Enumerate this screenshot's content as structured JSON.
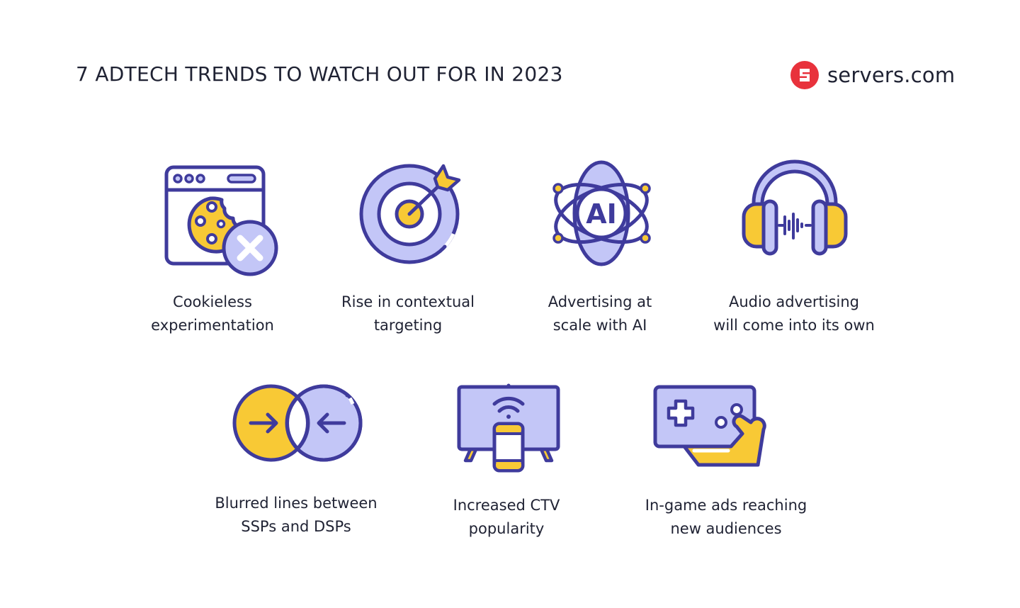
{
  "header": {
    "title": "7 ADTECH TRENDS TO WATCH OUT FOR IN 2023",
    "brand": "servers.com",
    "brand_color": "#e8323c"
  },
  "colors": {
    "outline": "#3f3b9c",
    "lavender": "#c3c6f7",
    "yellow": "#f8c935",
    "white": "#ffffff"
  },
  "trends": [
    {
      "icon": "browser-cookie-blocked-icon",
      "line1": "Cookieless",
      "line2": "experimentation"
    },
    {
      "icon": "target-arrow-icon",
      "line1": "Rise in contextual",
      "line2": "targeting"
    },
    {
      "icon": "ai-atom-icon",
      "icon_text": "AI",
      "line1": "Advertising at",
      "line2": "scale with AI"
    },
    {
      "icon": "headphones-audio-icon",
      "line1": "Audio advertising",
      "line2": "will come into its own"
    },
    {
      "icon": "overlapping-circles-arrows-icon",
      "line1": "Blurred lines between",
      "line2": "SSPs and DSPs"
    },
    {
      "icon": "tv-phone-wifi-icon",
      "line1": "Increased CTV",
      "line2": "popularity"
    },
    {
      "icon": "gamepad-hand-icon",
      "line1": "In-game ads reaching",
      "line2": "new audiences"
    }
  ]
}
